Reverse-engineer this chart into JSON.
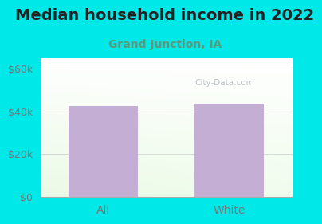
{
  "title": "Median household income in 2022",
  "subtitle": "Grand Junction, IA",
  "categories": [
    "All",
    "White"
  ],
  "values": [
    42500,
    43500
  ],
  "bar_color": "#c4aed4",
  "background_color": "#00e8e8",
  "title_color": "#222222",
  "subtitle_color": "#5a9a7a",
  "tick_label_color": "#777777",
  "ylim": [
    0,
    65000
  ],
  "yticks": [
    0,
    20000,
    40000,
    60000
  ],
  "ytick_labels": [
    "$0",
    "$20k",
    "$40k",
    "$60k"
  ],
  "watermark": "City-Data.com",
  "title_fontsize": 14,
  "subtitle_fontsize": 10
}
